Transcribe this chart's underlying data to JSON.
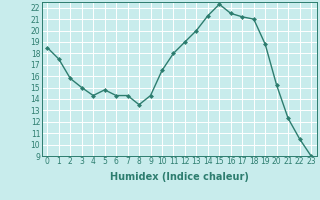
{
  "x": [
    0,
    1,
    2,
    3,
    4,
    5,
    6,
    7,
    8,
    9,
    10,
    11,
    12,
    13,
    14,
    15,
    16,
    17,
    18,
    19,
    20,
    21,
    22,
    23
  ],
  "y": [
    18.5,
    17.5,
    15.8,
    15.0,
    14.3,
    14.8,
    14.3,
    14.3,
    13.5,
    14.3,
    16.5,
    18.0,
    19.0,
    20.0,
    21.3,
    22.3,
    21.5,
    21.2,
    21.0,
    18.8,
    15.2,
    12.3,
    10.5,
    9.0
  ],
  "line_color": "#2d7d6f",
  "marker": "D",
  "marker_size": 2.0,
  "bg_color": "#c8ecec",
  "grid_color": "#ffffff",
  "xlabel": "Humidex (Indice chaleur)",
  "xlim": [
    -0.5,
    23.5
  ],
  "ylim": [
    9,
    22.5
  ],
  "yticks": [
    9,
    10,
    11,
    12,
    13,
    14,
    15,
    16,
    17,
    18,
    19,
    20,
    21,
    22
  ],
  "xticks": [
    0,
    1,
    2,
    3,
    4,
    5,
    6,
    7,
    8,
    9,
    10,
    11,
    12,
    13,
    14,
    15,
    16,
    17,
    18,
    19,
    20,
    21,
    22,
    23
  ],
  "tick_label_size": 5.5,
  "xlabel_size": 7.0,
  "line_width": 1.0
}
